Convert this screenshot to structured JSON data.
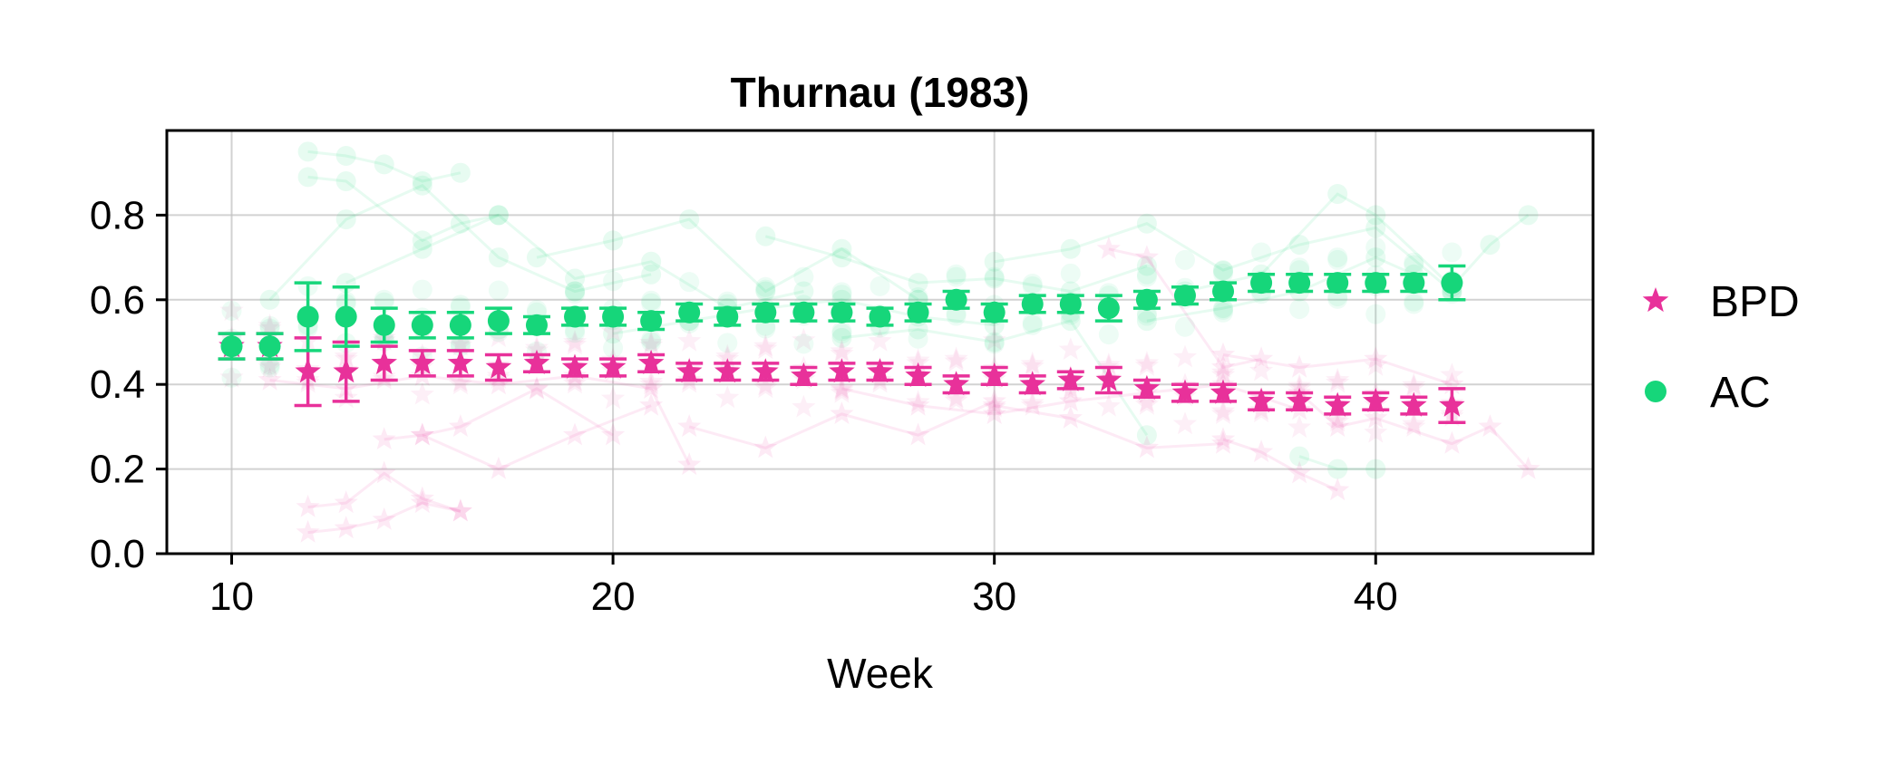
{
  "chart_data": {
    "type": "scatter",
    "title": "Thurnau (1983)",
    "xlabel": "Week",
    "ylabel": "",
    "xlim": [
      8.3,
      45.7
    ],
    "ylim": [
      0,
      1.0
    ],
    "xticks": [
      10,
      20,
      30,
      40
    ],
    "yticks": [
      0.0,
      0.2,
      0.4,
      0.6,
      0.8
    ],
    "xtick_labels": [
      "10",
      "20",
      "30",
      "40"
    ],
    "ytick_labels": [
      "0.0",
      "0.2",
      "0.4",
      "0.6",
      "0.8"
    ],
    "grid": true,
    "legend_position": "right",
    "series": [
      {
        "name": "BPD",
        "marker": "star",
        "color": "#e8319a",
        "x": [
          10,
          11,
          12,
          13,
          14,
          15,
          16,
          17,
          18,
          19,
          20,
          21,
          22,
          23,
          24,
          25,
          26,
          27,
          28,
          29,
          30,
          31,
          32,
          33,
          34,
          35,
          36,
          37,
          38,
          39,
          40,
          41,
          42
        ],
        "y": [
          0.49,
          0.49,
          0.43,
          0.43,
          0.45,
          0.45,
          0.45,
          0.44,
          0.45,
          0.44,
          0.44,
          0.45,
          0.43,
          0.43,
          0.43,
          0.42,
          0.43,
          0.43,
          0.42,
          0.4,
          0.42,
          0.4,
          0.41,
          0.41,
          0.39,
          0.38,
          0.38,
          0.36,
          0.36,
          0.35,
          0.36,
          0.35,
          0.35
        ],
        "err": [
          0.03,
          0.03,
          0.08,
          0.07,
          0.04,
          0.03,
          0.03,
          0.03,
          0.02,
          0.02,
          0.02,
          0.02,
          0.02,
          0.02,
          0.02,
          0.02,
          0.02,
          0.02,
          0.02,
          0.02,
          0.02,
          0.02,
          0.02,
          0.03,
          0.02,
          0.02,
          0.02,
          0.02,
          0.02,
          0.02,
          0.02,
          0.02,
          0.04
        ]
      },
      {
        "name": "AC",
        "marker": "circle",
        "color": "#16d67a",
        "x": [
          10,
          11,
          12,
          13,
          14,
          15,
          16,
          17,
          18,
          19,
          20,
          21,
          22,
          23,
          24,
          25,
          26,
          27,
          28,
          29,
          30,
          31,
          32,
          33,
          34,
          35,
          36,
          37,
          38,
          39,
          40,
          41,
          42
        ],
        "y": [
          0.49,
          0.49,
          0.56,
          0.56,
          0.54,
          0.54,
          0.54,
          0.55,
          0.54,
          0.56,
          0.56,
          0.55,
          0.57,
          0.56,
          0.57,
          0.57,
          0.57,
          0.56,
          0.57,
          0.6,
          0.57,
          0.59,
          0.59,
          0.58,
          0.6,
          0.61,
          0.62,
          0.64,
          0.64,
          0.64,
          0.64,
          0.64,
          0.64
        ],
        "err": [
          0.03,
          0.03,
          0.08,
          0.07,
          0.04,
          0.03,
          0.03,
          0.03,
          0.02,
          0.02,
          0.02,
          0.02,
          0.02,
          0.02,
          0.02,
          0.02,
          0.02,
          0.02,
          0.02,
          0.02,
          0.02,
          0.02,
          0.02,
          0.03,
          0.02,
          0.02,
          0.02,
          0.02,
          0.02,
          0.02,
          0.02,
          0.02,
          0.04
        ]
      }
    ],
    "background_traces": [
      {
        "series": "AC",
        "x": [
          12,
          13,
          14,
          15,
          16
        ],
        "y": [
          0.95,
          0.94,
          0.92,
          0.88,
          0.9
        ]
      },
      {
        "series": "AC",
        "x": [
          12,
          13,
          15,
          16,
          17
        ],
        "y": [
          0.89,
          0.88,
          0.74,
          0.78,
          0.8
        ]
      },
      {
        "series": "AC",
        "x": [
          11,
          13,
          15,
          17,
          19,
          21
        ],
        "y": [
          0.6,
          0.79,
          0.87,
          0.7,
          0.62,
          0.66
        ]
      },
      {
        "series": "AC",
        "x": [
          13,
          15,
          17,
          19,
          21,
          23,
          25
        ],
        "y": [
          0.64,
          0.72,
          0.8,
          0.65,
          0.69,
          0.58,
          0.62
        ]
      },
      {
        "series": "AC",
        "x": [
          18,
          20,
          22,
          24,
          26,
          28
        ],
        "y": [
          0.7,
          0.74,
          0.79,
          0.62,
          0.72,
          0.6
        ]
      },
      {
        "series": "AC",
        "x": [
          24,
          26,
          28,
          30,
          32,
          34
        ],
        "y": [
          0.75,
          0.7,
          0.64,
          0.65,
          0.62,
          0.68
        ]
      },
      {
        "series": "AC",
        "x": [
          30,
          32,
          34,
          36,
          38,
          40,
          42
        ],
        "y": [
          0.69,
          0.72,
          0.78,
          0.67,
          0.73,
          0.77,
          0.62
        ]
      },
      {
        "series": "AC",
        "x": [
          35,
          37,
          39,
          40,
          42,
          43,
          44
        ],
        "y": [
          0.62,
          0.66,
          0.85,
          0.8,
          0.63,
          0.73,
          0.8
        ]
      },
      {
        "series": "AC",
        "x": [
          34,
          36,
          38,
          40,
          41
        ],
        "y": [
          0.55,
          0.58,
          0.62,
          0.7,
          0.66
        ]
      },
      {
        "series": "AC",
        "x": [
          20,
          22,
          24,
          26,
          28,
          30
        ],
        "y": [
          0.52,
          0.55,
          0.58,
          0.6,
          0.56,
          0.54
        ]
      },
      {
        "series": "AC",
        "x": [
          26,
          28,
          30,
          32,
          34
        ],
        "y": [
          0.51,
          0.53,
          0.5,
          0.55,
          0.28
        ]
      },
      {
        "series": "AC",
        "x": [
          38,
          39,
          40
        ],
        "y": [
          0.23,
          0.2,
          0.2
        ]
      },
      {
        "series": "BPD",
        "x": [
          12,
          13,
          14,
          15,
          16
        ],
        "y": [
          0.05,
          0.06,
          0.08,
          0.12,
          0.1
        ]
      },
      {
        "series": "BPD",
        "x": [
          12,
          13,
          14,
          15,
          16
        ],
        "y": [
          0.11,
          0.12,
          0.19,
          0.13,
          0.1
        ]
      },
      {
        "series": "BPD",
        "x": [
          14,
          15,
          17,
          19,
          21
        ],
        "y": [
          0.27,
          0.28,
          0.2,
          0.28,
          0.35
        ]
      },
      {
        "series": "BPD",
        "x": [
          15,
          16,
          18,
          20
        ],
        "y": [
          0.28,
          0.3,
          0.39,
          0.28
        ]
      },
      {
        "series": "BPD",
        "x": [
          11,
          13,
          15,
          17,
          19,
          21,
          22
        ],
        "y": [
          0.41,
          0.39,
          0.42,
          0.4,
          0.42,
          0.39,
          0.21
        ]
      },
      {
        "series": "BPD",
        "x": [
          22,
          24,
          26,
          28,
          30
        ],
        "y": [
          0.3,
          0.25,
          0.33,
          0.28,
          0.36
        ]
      },
      {
        "series": "BPD",
        "x": [
          30,
          32,
          34,
          36
        ],
        "y": [
          0.35,
          0.32,
          0.25,
          0.26
        ]
      },
      {
        "series": "BPD",
        "x": [
          33,
          34,
          36,
          37
        ],
        "y": [
          0.72,
          0.7,
          0.44,
          0.46
        ]
      },
      {
        "series": "BPD",
        "x": [
          36,
          37,
          38,
          39
        ],
        "y": [
          0.27,
          0.24,
          0.19,
          0.15
        ]
      },
      {
        "series": "BPD",
        "x": [
          38,
          39,
          40,
          42,
          43,
          44
        ],
        "y": [
          0.38,
          0.3,
          0.32,
          0.26,
          0.3,
          0.2
        ]
      },
      {
        "series": "BPD",
        "x": [
          26,
          28,
          30,
          32,
          34,
          36,
          38
        ],
        "y": [
          0.39,
          0.35,
          0.33,
          0.36,
          0.38,
          0.4,
          0.34
        ]
      },
      {
        "series": "BPD",
        "x": [
          36,
          38,
          40,
          42
        ],
        "y": [
          0.47,
          0.44,
          0.46,
          0.4
        ]
      }
    ]
  }
}
